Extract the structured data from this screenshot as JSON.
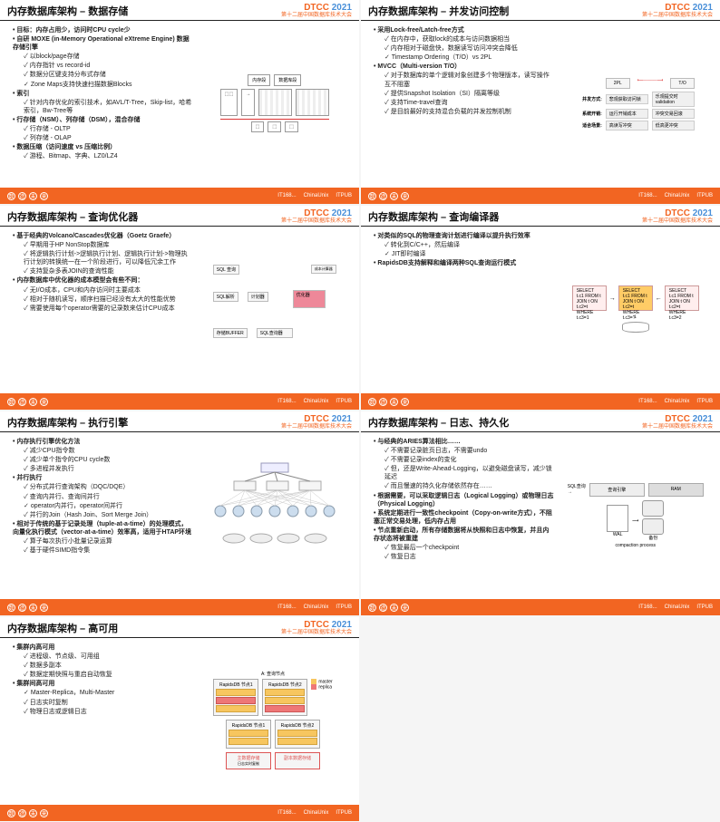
{
  "logo": {
    "brand": "DTCC",
    "year": "2021",
    "sub": "第十二届中国数据库技术大会"
  },
  "footer": {
    "left": "数 造 未 来",
    "r1": "IT168...",
    "r2": "ChinaUnix",
    "r3": "ITPUB"
  },
  "slides": [
    {
      "title": "内存数据库架构 – 数据存储",
      "bullets": [
        {
          "l": 0,
          "t": "目标：内存占用少，访问时CPU cycle少"
        },
        {
          "l": 0,
          "t": "自研 MOXE (in-Memory Operational eXtreme Engine) 数据存储引擎"
        },
        {
          "l": 1,
          "t": "以block/page存储"
        },
        {
          "l": 1,
          "t": "内存指针 vs record-id"
        },
        {
          "l": 1,
          "t": "数据分区键支持分布式存储"
        },
        {
          "l": 1,
          "t": "Zone Maps支持快速扫描数据Blocks"
        },
        {
          "l": 0,
          "t": "索引"
        },
        {
          "l": 1,
          "t": "针对内存优化的索引技术，如AVL/T-Tree，Skip-list，哈希索引，Bw-Tree等"
        },
        {
          "l": 0,
          "t": "行存储（NSM）、列存储（DSM），混合存储"
        },
        {
          "l": 1,
          "t": "行存储 - OLTP"
        },
        {
          "l": 1,
          "t": "列存储 - OLAP"
        },
        {
          "l": 0,
          "t": "数据压缩（访问速度 vs 压缩比例）"
        },
        {
          "l": 1,
          "t": "游程、Bitmap、字典、LZ0/LZ4"
        }
      ],
      "dia": {
        "type": "storage",
        "labels": [
          "内存段",
          "数据库段"
        ]
      }
    },
    {
      "title": "内存数据库架构 – 并发访问控制",
      "bullets": [
        {
          "l": 0,
          "t": "采用Lock-free/Latch-free方式"
        },
        {
          "l": 1,
          "t": "在内存中，获取lock的成本与访问数据相当"
        },
        {
          "l": 1,
          "t": "内存相对于磁盘快，数据读写访问冲突会降低"
        },
        {
          "l": 1,
          "t": "Timestamp Ordering（T/O）vs 2PL"
        },
        {
          "l": 0,
          "t": "MVCC（Multi-version T/O）"
        },
        {
          "l": 1,
          "t": "对于数据库的单个逻辑对象创建多个物理版本，读写操作互不阻塞"
        },
        {
          "l": 1,
          "t": "提供Snapshot Isolation（SI）隔离等级"
        },
        {
          "l": 1,
          "t": "支持Time-travel查询"
        },
        {
          "l": 1,
          "t": "是目前最好的支持混合负载的并发控制机制"
        }
      ],
      "dia": {
        "type": "cc",
        "hdr": [
          "2PL",
          "T/O"
        ],
        "rows": [
          [
            "并发方式",
            "悲观获取访问锁",
            "乐观提交时validation"
          ],
          [
            "系统开销",
            "运行开销成本",
            "冲突交易回滚"
          ],
          [
            "适合场景",
            "高读写冲突",
            "低高更冲突"
          ]
        ]
      }
    },
    {
      "title": "内存数据库架构 – 查询优化器",
      "bullets": [
        {
          "l": 0,
          "t": "基于经典的Volcano/Cascades优化器（Goetz Graefe）"
        },
        {
          "l": 1,
          "t": "早期用于HP NonStop数据库"
        },
        {
          "l": 1,
          "t": "将逻辑执行计划->逻辑执行计划、逻辑执行计划->物理执行计划的转换统一在一个阶段进行，可以降低冗余工作"
        },
        {
          "l": 1,
          "t": "支持复杂多表JOIN的查询性能"
        },
        {
          "l": 0,
          "t": "内存数据库中优化器的成本模型会有些不同："
        },
        {
          "l": 1,
          "t": "无I/O成本，CPU和内存访问时主要成本"
        },
        {
          "l": 1,
          "t": "相对于随机读写，顺序扫描已经没有太大的性能优势"
        },
        {
          "l": 1,
          "t": "需要使用每个operator需要的记录数来估计CPU成本"
        }
      ],
      "dia": {
        "type": "optimizer",
        "labels": [
          "SQL 查询",
          "SQL解析",
          "计划器",
          "优化器",
          "执行器",
          "存储BUFFER",
          "SQL查询器"
        ]
      }
    },
    {
      "title": "内存数据库架构 – 查询编译器",
      "bullets": [
        {
          "l": 0,
          "t": "对类似的SQL的物理查询计划进行编译以提升执行效率"
        },
        {
          "l": 1,
          "t": "转化到C/C++，然后编译"
        },
        {
          "l": 1,
          "t": "JIT即时编译"
        },
        {
          "l": 0,
          "t": "RapidsDB支持解释和编译两种SQL查询运行模式"
        }
      ],
      "dia": {
        "type": "compiler",
        "q": [
          "SELECT t.c1\nFROM t JOIN t\n  ON t.c2=t\nWHERE t.c3=1",
          "SELECT t.c1\nFROM t JOIN t\n  ON t.c2=t\nWHERE t.c3=?",
          "SELECT t.c1\nFROM t JOIN t\n  ON t.c2=t\nWHERE t.c3=2"
        ]
      }
    },
    {
      "title": "内存数据库架构 – 执行引擎",
      "bullets": [
        {
          "l": 0,
          "t": "内存执行引擎优化方法"
        },
        {
          "l": 1,
          "t": "减少CPU指令数"
        },
        {
          "l": 1,
          "t": "减少单个指令的CPU cycle数"
        },
        {
          "l": 1,
          "t": "多进程并发执行"
        },
        {
          "l": 0,
          "t": "并行执行"
        },
        {
          "l": 1,
          "t": "分布式并行查询架构（DQC/DQE）"
        },
        {
          "l": 1,
          "t": "查询内并行、查询间并行"
        },
        {
          "l": 1,
          "t": "operator内并行，operator间并行"
        },
        {
          "l": 1,
          "t": "并行的Join（Hash Join、Sort Merge Join）"
        },
        {
          "l": 0,
          "t": "相对于传统的基于记录处理（tuple-at-a-time）的处理模式，向量化执行模式（vector-at-a-time）效率高，适用于HTAP环境"
        },
        {
          "l": 1,
          "t": "算子每次执行小批量记录运算"
        },
        {
          "l": 1,
          "t": "基于硬件SIMD指令集"
        }
      ],
      "dia": {
        "type": "exec"
      }
    },
    {
      "title": "内存数据库架构 – 日志、持久化",
      "bullets": [
        {
          "l": 0,
          "t": "与经典的ARIES算法相比……"
        },
        {
          "l": 1,
          "t": "不需要记录脏页日志，不需要undo"
        },
        {
          "l": 1,
          "t": "不需要记录index的变化"
        },
        {
          "l": 1,
          "t": "但，还是Write-Ahead-Logging，以避免磁盘读写，减少锁延迟"
        },
        {
          "l": 1,
          "t": "而且慢速的持久化存储依然存在……"
        },
        {
          "l": 0,
          "t": "根据需要，可以采取逻辑日志（Logical Logging）或物理日志（Physical Logging）"
        },
        {
          "l": 0,
          "t": "系统定期进行一致性checkpoint（Copy-on-write方式），不阻塞正常交易处理，低内存占用"
        },
        {
          "l": 0,
          "t": "节点重新启动，所有存储数据将从快照和日志中恢复，并且内存状态将被重建"
        },
        {
          "l": 1,
          "t": "恢复最后一个checkpoint"
        },
        {
          "l": 1,
          "t": "恢复日志"
        }
      ],
      "dia": {
        "type": "log",
        "labels": [
          "SQL查询",
          "查询引擎",
          "RAM",
          "WAL",
          "compaction process",
          "备份"
        ]
      }
    },
    {
      "title": "内存数据库架构 – 高可用",
      "bullets": [
        {
          "l": 0,
          "t": "集群内高可用"
        },
        {
          "l": 1,
          "t": "进程级、节点级、可用组"
        },
        {
          "l": 1,
          "t": "数据多副本"
        },
        {
          "l": 1,
          "t": "数据定期快照与重启自动恢复"
        },
        {
          "l": 0,
          "t": "集群间高可用"
        },
        {
          "l": 1,
          "t": "Master-Replica，Multi-Master"
        },
        {
          "l": 1,
          "t": "日志实时复制"
        },
        {
          "l": 1,
          "t": "物理日志或逻辑日志"
        }
      ],
      "dia": {
        "type": "ha",
        "labels": [
          "A: 查询节点",
          "RapidsDB 节点1",
          "RapidsDB 节点2",
          "master",
          "replica",
          "主数据存储",
          "副本数据存储",
          "日志实时复制"
        ]
      }
    }
  ]
}
